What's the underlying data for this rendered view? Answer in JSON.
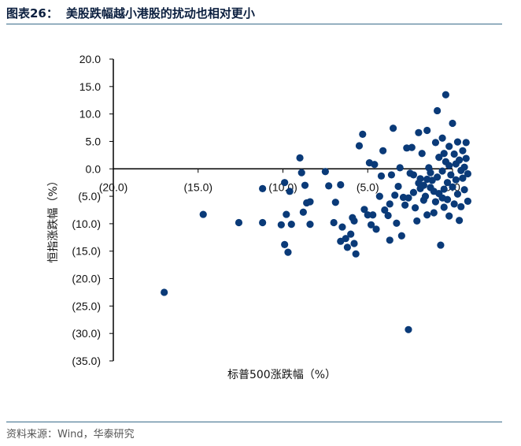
{
  "header": {
    "figure_number": "图表26：",
    "title": "美股跌幅越小港股的扰动也相对更小"
  },
  "source": "资料来源：Wind，华泰研究",
  "chart_data": {
    "type": "scatter",
    "xlabel": "标普500涨跌幅（%）",
    "ylabel": "恒指涨跌幅（%）",
    "xlim": [
      -20,
      0
    ],
    "ylim": [
      -35,
      20
    ],
    "x_ticks": [
      -20,
      -15,
      -10,
      -5,
      0
    ],
    "x_tick_labels": [
      "(20.0)",
      "(15.0)",
      "(10.0)",
      "(5.0)",
      "0.0"
    ],
    "y_ticks": [
      20,
      15,
      10,
      5,
      0,
      -5,
      -10,
      -15,
      -20,
      -25,
      -30,
      -35
    ],
    "y_tick_labels": [
      "20.0",
      "15.0",
      "10.0",
      "5.0",
      "0.0",
      "(5.0)",
      "(10.0)",
      "(15.0)",
      "(20.0)",
      "(25.0)",
      "(30.0)",
      "(35.0)"
    ],
    "marker_color": "#0a3a78",
    "points": [
      [
        -17.0,
        -22.5
      ],
      [
        -14.7,
        -8.3
      ],
      [
        -12.6,
        -9.8
      ],
      [
        -11.2,
        -3.6
      ],
      [
        -11.2,
        -9.8
      ],
      [
        -9.9,
        -2.5
      ],
      [
        -9.8,
        -8.3
      ],
      [
        -9.6,
        -4.1
      ],
      [
        -9.5,
        -10.1
      ],
      [
        -9.9,
        -13.8
      ],
      [
        -9.7,
        -15.2
      ],
      [
        -10.1,
        -10.2
      ],
      [
        -9.0,
        2.0
      ],
      [
        -8.9,
        -0.7
      ],
      [
        -8.7,
        -3.0
      ],
      [
        -8.6,
        -6.2
      ],
      [
        -8.4,
        -6.0
      ],
      [
        -8.8,
        -7.9
      ],
      [
        -8.4,
        -10.1
      ],
      [
        -7.5,
        -0.5
      ],
      [
        -7.3,
        -3.1
      ],
      [
        -7.0,
        -9.8
      ],
      [
        -6.9,
        -6.1
      ],
      [
        -6.6,
        -2.9
      ],
      [
        -6.5,
        -10.6
      ],
      [
        -6.3,
        -12.7
      ],
      [
        -6.2,
        -14.3
      ],
      [
        -6.0,
        -11.9
      ],
      [
        -5.9,
        -8.9
      ],
      [
        -5.8,
        -13.6
      ],
      [
        -5.7,
        -15.5
      ],
      [
        -5.5,
        4.2
      ],
      [
        -5.3,
        6.3
      ],
      [
        -5.2,
        -7.4
      ],
      [
        -5.0,
        -8.4
      ],
      [
        -4.9,
        1.1
      ],
      [
        -4.8,
        -10.2
      ],
      [
        -4.7,
        -8.4
      ],
      [
        -4.5,
        -11.0
      ],
      [
        -4.3,
        -5.0
      ],
      [
        -4.2,
        -1.3
      ],
      [
        -4.0,
        -7.5
      ],
      [
        -3.8,
        -8.5
      ],
      [
        -3.7,
        -13.0
      ],
      [
        -3.6,
        -1.1
      ],
      [
        -3.5,
        7.4
      ],
      [
        -3.4,
        -4.8
      ],
      [
        -3.3,
        -9.9
      ],
      [
        -3.2,
        -3.2
      ],
      [
        -3.0,
        -12.2
      ],
      [
        -2.9,
        -5.2
      ],
      [
        -2.8,
        -6.6
      ],
      [
        -2.7,
        3.8
      ],
      [
        -2.6,
        -29.3
      ],
      [
        -2.5,
        -0.8
      ],
      [
        -2.4,
        3.9
      ],
      [
        -2.3,
        -4.3
      ],
      [
        -2.2,
        -7.1
      ],
      [
        -2.1,
        -9.5
      ],
      [
        -2.0,
        6.6
      ],
      [
        -1.9,
        -1.8
      ],
      [
        -1.8,
        2.8
      ],
      [
        -1.7,
        -3.0
      ],
      [
        -1.6,
        -5.0
      ],
      [
        -1.5,
        7.0
      ],
      [
        -1.5,
        -8.4
      ],
      [
        -1.4,
        0.2
      ],
      [
        -1.3,
        -0.7
      ],
      [
        -1.2,
        -2.1
      ],
      [
        -1.1,
        -4.1
      ],
      [
        -1.0,
        4.8
      ],
      [
        -1.0,
        -6.0
      ],
      [
        -0.9,
        10.6
      ],
      [
        -0.9,
        -1.5
      ],
      [
        -0.8,
        2.1
      ],
      [
        -0.8,
        -4.5
      ],
      [
        -0.7,
        -13.9
      ],
      [
        -0.6,
        5.6
      ],
      [
        -0.6,
        -0.4
      ],
      [
        -0.5,
        -3.7
      ],
      [
        -0.5,
        -7.0
      ],
      [
        -0.4,
        1.3
      ],
      [
        -0.4,
        13.5
      ],
      [
        -0.3,
        -2.5
      ],
      [
        -0.3,
        -5.6
      ],
      [
        -0.2,
        4.1
      ],
      [
        -0.2,
        0.6
      ],
      [
        -0.1,
        -1.1
      ],
      [
        0.0,
        -3.3
      ],
      [
        0.0,
        8.3
      ],
      [
        0.1,
        -6.4
      ],
      [
        0.1,
        2.7
      ],
      [
        0.2,
        0.9
      ],
      [
        0.2,
        -2.0
      ],
      [
        0.3,
        4.9
      ],
      [
        0.3,
        -4.6
      ],
      [
        0.4,
        1.6
      ],
      [
        0.4,
        -9.4
      ],
      [
        0.5,
        -0.3
      ],
      [
        0.5,
        -6.9
      ],
      [
        0.6,
        3.3
      ],
      [
        0.6,
        -1.7
      ],
      [
        0.7,
        0.3
      ],
      [
        0.7,
        -3.8
      ],
      [
        0.8,
        4.8
      ],
      [
        0.8,
        1.9
      ],
      [
        0.9,
        -0.9
      ],
      [
        0.9,
        -5.9
      ],
      [
        -1.3,
        -3.4
      ],
      [
        -2.0,
        -2.6
      ],
      [
        -1.7,
        -5.7
      ],
      [
        -2.6,
        -5.3
      ],
      [
        -1.1,
        -8.0
      ],
      [
        -3.7,
        -6.4
      ],
      [
        -0.2,
        -8.6
      ],
      [
        -4.1,
        3.3
      ],
      [
        -3.1,
        0.2
      ],
      [
        -4.6,
        0.8
      ],
      [
        -5.8,
        -9.5
      ],
      [
        -6.6,
        -13.2
      ],
      [
        -0.6,
        -5.3
      ],
      [
        -1.9,
        -3.6
      ],
      [
        -2.3,
        -1.1
      ],
      [
        -0.5,
        2.8
      ],
      [
        -1.5,
        -1.9
      ]
    ]
  }
}
